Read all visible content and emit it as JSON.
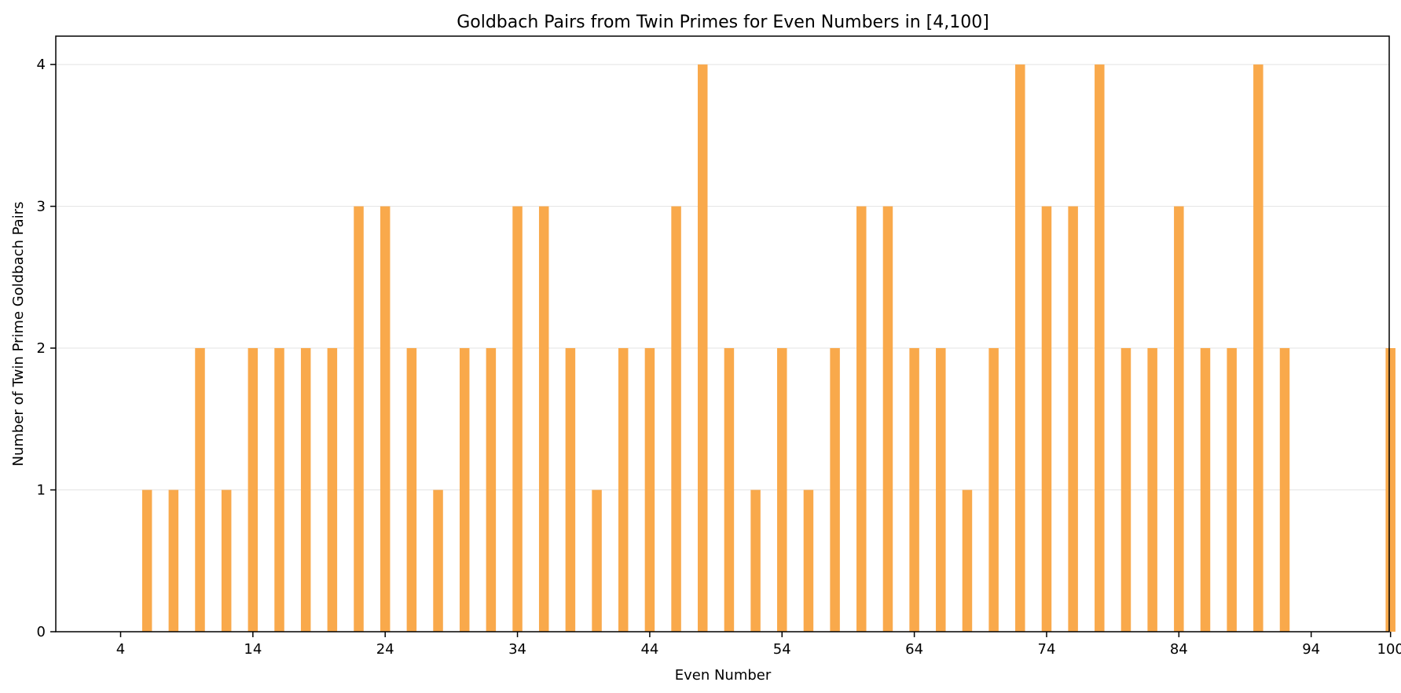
{
  "chart_data": {
    "type": "bar",
    "title": "Goldbach Pairs from Twin Primes for Even Numbers in [4,100]",
    "xlabel": "Even Number",
    "ylabel": "Number of Twin Prime Goldbach Pairs",
    "x": [
      4,
      6,
      8,
      10,
      12,
      14,
      16,
      18,
      20,
      22,
      24,
      26,
      28,
      30,
      32,
      34,
      36,
      38,
      40,
      42,
      44,
      46,
      48,
      50,
      52,
      54,
      56,
      58,
      60,
      62,
      64,
      66,
      68,
      70,
      72,
      74,
      76,
      78,
      80,
      82,
      84,
      86,
      88,
      90,
      92,
      94,
      96,
      98,
      100
    ],
    "values": [
      0,
      1,
      1,
      2,
      1,
      2,
      2,
      2,
      2,
      3,
      3,
      2,
      1,
      2,
      2,
      3,
      3,
      2,
      1,
      2,
      2,
      3,
      4,
      2,
      1,
      2,
      1,
      2,
      3,
      3,
      2,
      2,
      1,
      2,
      4,
      3,
      3,
      4,
      2,
      2,
      3,
      2,
      2,
      4,
      2,
      0,
      0,
      0,
      2
    ],
    "x_ticks": [
      4,
      14,
      24,
      34,
      44,
      54,
      64,
      74,
      84,
      94,
      100
    ],
    "y_ticks": [
      0,
      1,
      2,
      3,
      4
    ],
    "xlim": [
      -0.9,
      99.9
    ],
    "ylim": [
      0,
      4.2
    ],
    "bar_color": "#f9a94b",
    "grid": "y-major"
  }
}
